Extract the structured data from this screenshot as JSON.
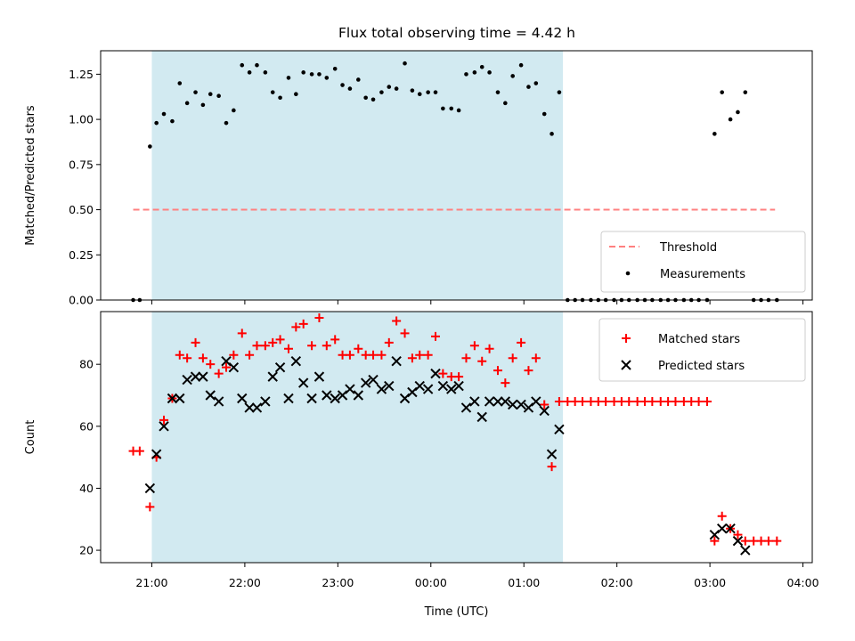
{
  "chart_data": [
    {
      "type": "scatter",
      "title": "Flux total observing time = 4.42 h",
      "xlabel": "",
      "ylabel": "Matched/Predicted stars",
      "x_unit": "hours since 21:00 UTC",
      "xlim": [
        -0.55,
        7.1
      ],
      "ylim": [
        0,
        1.38
      ],
      "yticks": [
        0.0,
        0.25,
        0.5,
        0.75,
        1.0,
        1.25
      ],
      "ytick_labels": [
        "0.00",
        "0.25",
        "0.50",
        "0.75",
        "1.00",
        "1.25"
      ],
      "shaded_span": {
        "x0": 0.0,
        "x1": 4.42,
        "color": "#add8e6"
      },
      "threshold": {
        "name": "Threshold",
        "y": 0.5,
        "x0": -0.2,
        "x1": 6.7,
        "color": "#ff8080"
      },
      "legend": {
        "position": "bottom-right",
        "entries": [
          "Threshold",
          "Measurements"
        ]
      },
      "series": [
        {
          "name": "Measurements",
          "color": "#000000",
          "marker": "dot",
          "points": [
            [
              -0.2,
              0.0
            ],
            [
              -0.13,
              0.0
            ],
            [
              -0.02,
              0.85
            ],
            [
              0.05,
              0.98
            ],
            [
              0.13,
              1.03
            ],
            [
              0.22,
              0.99
            ],
            [
              0.3,
              1.2
            ],
            [
              0.38,
              1.09
            ],
            [
              0.47,
              1.15
            ],
            [
              0.55,
              1.08
            ],
            [
              0.63,
              1.14
            ],
            [
              0.72,
              1.13
            ],
            [
              0.8,
              0.98
            ],
            [
              0.88,
              1.05
            ],
            [
              0.97,
              1.3
            ],
            [
              1.05,
              1.26
            ],
            [
              1.13,
              1.3
            ],
            [
              1.22,
              1.26
            ],
            [
              1.3,
              1.15
            ],
            [
              1.38,
              1.12
            ],
            [
              1.47,
              1.23
            ],
            [
              1.55,
              1.14
            ],
            [
              1.63,
              1.26
            ],
            [
              1.72,
              1.25
            ],
            [
              1.8,
              1.25
            ],
            [
              1.88,
              1.23
            ],
            [
              1.97,
              1.28
            ],
            [
              2.05,
              1.19
            ],
            [
              2.13,
              1.17
            ],
            [
              2.22,
              1.22
            ],
            [
              2.3,
              1.12
            ],
            [
              2.38,
              1.11
            ],
            [
              2.47,
              1.15
            ],
            [
              2.55,
              1.18
            ],
            [
              2.63,
              1.17
            ],
            [
              2.72,
              1.31
            ],
            [
              2.8,
              1.16
            ],
            [
              2.88,
              1.14
            ],
            [
              2.97,
              1.15
            ],
            [
              3.05,
              1.15
            ],
            [
              3.13,
              1.06
            ],
            [
              3.22,
              1.06
            ],
            [
              3.3,
              1.05
            ],
            [
              3.38,
              1.25
            ],
            [
              3.47,
              1.26
            ],
            [
              3.55,
              1.29
            ],
            [
              3.63,
              1.26
            ],
            [
              3.72,
              1.15
            ],
            [
              3.8,
              1.09
            ],
            [
              3.88,
              1.24
            ],
            [
              3.97,
              1.3
            ],
            [
              4.05,
              1.18
            ],
            [
              4.13,
              1.2
            ],
            [
              4.22,
              1.03
            ],
            [
              4.3,
              0.92
            ],
            [
              4.38,
              1.15
            ],
            [
              4.47,
              0.0
            ],
            [
              4.55,
              0.0
            ],
            [
              4.63,
              0.0
            ],
            [
              4.72,
              0.0
            ],
            [
              4.8,
              0.0
            ],
            [
              4.88,
              0.0
            ],
            [
              4.97,
              0.0
            ],
            [
              5.05,
              0.0
            ],
            [
              5.13,
              0.0
            ],
            [
              5.22,
              0.0
            ],
            [
              5.3,
              0.0
            ],
            [
              5.38,
              0.0
            ],
            [
              5.47,
              0.0
            ],
            [
              5.55,
              0.0
            ],
            [
              5.63,
              0.0
            ],
            [
              5.72,
              0.0
            ],
            [
              5.8,
              0.0
            ],
            [
              5.88,
              0.0
            ],
            [
              5.97,
              0.0
            ],
            [
              6.05,
              0.92
            ],
            [
              6.13,
              1.15
            ],
            [
              6.22,
              1.0
            ],
            [
              6.3,
              1.04
            ],
            [
              6.38,
              1.15
            ],
            [
              6.47,
              0.0
            ],
            [
              6.55,
              0.0
            ],
            [
              6.63,
              0.0
            ],
            [
              6.72,
              0.0
            ]
          ]
        }
      ]
    },
    {
      "type": "scatter",
      "title": "",
      "xlabel": "Time (UTC)",
      "ylabel": "Count",
      "x_unit": "hours since 21:00 UTC",
      "xlim": [
        -0.55,
        7.1
      ],
      "ylim": [
        16,
        97
      ],
      "xticks": [
        0,
        1,
        2,
        3,
        4,
        5,
        6,
        7
      ],
      "xtick_labels": [
        "21:00",
        "22:00",
        "23:00",
        "00:00",
        "01:00",
        "02:00",
        "03:00",
        "04:00"
      ],
      "yticks": [
        20,
        40,
        60,
        80
      ],
      "ytick_labels": [
        "20",
        "40",
        "60",
        "80"
      ],
      "shaded_span": {
        "x0": 0.0,
        "x1": 4.42,
        "color": "#add8e6"
      },
      "legend": {
        "position": "top-right",
        "entries": [
          "Matched stars",
          "Predicted stars"
        ]
      },
      "series": [
        {
          "name": "Matched stars",
          "color": "#ff0000",
          "marker": "plus",
          "points": [
            [
              -0.2,
              52
            ],
            [
              -0.13,
              52
            ],
            [
              -0.02,
              34
            ],
            [
              0.05,
              50
            ],
            [
              0.13,
              62
            ],
            [
              0.22,
              69
            ],
            [
              0.3,
              83
            ],
            [
              0.38,
              82
            ],
            [
              0.47,
              87
            ],
            [
              0.55,
              82
            ],
            [
              0.63,
              80
            ],
            [
              0.72,
              77
            ],
            [
              0.8,
              79
            ],
            [
              0.88,
              83
            ],
            [
              0.97,
              90
            ],
            [
              1.05,
              83
            ],
            [
              1.13,
              86
            ],
            [
              1.22,
              86
            ],
            [
              1.3,
              87
            ],
            [
              1.38,
              88
            ],
            [
              1.47,
              85
            ],
            [
              1.55,
              92
            ],
            [
              1.63,
              93
            ],
            [
              1.72,
              86
            ],
            [
              1.8,
              95
            ],
            [
              1.88,
              86
            ],
            [
              1.97,
              88
            ],
            [
              2.05,
              83
            ],
            [
              2.13,
              83
            ],
            [
              2.22,
              85
            ],
            [
              2.3,
              83
            ],
            [
              2.38,
              83
            ],
            [
              2.47,
              83
            ],
            [
              2.55,
              87
            ],
            [
              2.63,
              94
            ],
            [
              2.72,
              90
            ],
            [
              2.8,
              82
            ],
            [
              2.88,
              83
            ],
            [
              2.97,
              83
            ],
            [
              3.05,
              89
            ],
            [
              3.13,
              77
            ],
            [
              3.22,
              76
            ],
            [
              3.3,
              76
            ],
            [
              3.38,
              82
            ],
            [
              3.47,
              86
            ],
            [
              3.55,
              81
            ],
            [
              3.63,
              85
            ],
            [
              3.72,
              78
            ],
            [
              3.8,
              74
            ],
            [
              3.88,
              82
            ],
            [
              3.97,
              87
            ],
            [
              4.05,
              78
            ],
            [
              4.13,
              82
            ],
            [
              4.22,
              67
            ],
            [
              4.3,
              47
            ],
            [
              4.38,
              68
            ],
            [
              4.47,
              68
            ],
            [
              4.55,
              68
            ],
            [
              4.63,
              68
            ],
            [
              4.72,
              68
            ],
            [
              4.8,
              68
            ],
            [
              4.88,
              68
            ],
            [
              4.97,
              68
            ],
            [
              5.05,
              68
            ],
            [
              5.13,
              68
            ],
            [
              5.22,
              68
            ],
            [
              5.3,
              68
            ],
            [
              5.38,
              68
            ],
            [
              5.47,
              68
            ],
            [
              5.55,
              68
            ],
            [
              5.63,
              68
            ],
            [
              5.72,
              68
            ],
            [
              5.8,
              68
            ],
            [
              5.88,
              68
            ],
            [
              5.97,
              68
            ],
            [
              6.05,
              23
            ],
            [
              6.13,
              31
            ],
            [
              6.22,
              27
            ],
            [
              6.3,
              25
            ],
            [
              6.38,
              23
            ],
            [
              6.47,
              23
            ],
            [
              6.55,
              23
            ],
            [
              6.63,
              23
            ],
            [
              6.72,
              23
            ]
          ]
        },
        {
          "name": "Predicted stars",
          "color": "#000000",
          "marker": "x",
          "points": [
            [
              -0.02,
              40
            ],
            [
              0.05,
              51
            ],
            [
              0.13,
              60
            ],
            [
              0.22,
              69
            ],
            [
              0.3,
              69
            ],
            [
              0.38,
              75
            ],
            [
              0.47,
              76
            ],
            [
              0.55,
              76
            ],
            [
              0.63,
              70
            ],
            [
              0.72,
              68
            ],
            [
              0.8,
              81
            ],
            [
              0.88,
              79
            ],
            [
              0.97,
              69
            ],
            [
              1.05,
              66
            ],
            [
              1.13,
              66
            ],
            [
              1.22,
              68
            ],
            [
              1.3,
              76
            ],
            [
              1.38,
              79
            ],
            [
              1.47,
              69
            ],
            [
              1.55,
              81
            ],
            [
              1.63,
              74
            ],
            [
              1.72,
              69
            ],
            [
              1.8,
              76
            ],
            [
              1.88,
              70
            ],
            [
              1.97,
              69
            ],
            [
              2.05,
              70
            ],
            [
              2.13,
              72
            ],
            [
              2.22,
              70
            ],
            [
              2.3,
              74
            ],
            [
              2.38,
              75
            ],
            [
              2.47,
              72
            ],
            [
              2.55,
              73
            ],
            [
              2.63,
              81
            ],
            [
              2.72,
              69
            ],
            [
              2.8,
              71
            ],
            [
              2.88,
              73
            ],
            [
              2.97,
              72
            ],
            [
              3.05,
              77
            ],
            [
              3.13,
              73
            ],
            [
              3.22,
              72
            ],
            [
              3.3,
              73
            ],
            [
              3.38,
              66
            ],
            [
              3.47,
              68
            ],
            [
              3.55,
              63
            ],
            [
              3.63,
              68
            ],
            [
              3.72,
              68
            ],
            [
              3.8,
              68
            ],
            [
              3.88,
              67
            ],
            [
              3.97,
              67
            ],
            [
              4.05,
              66
            ],
            [
              4.13,
              68
            ],
            [
              4.22,
              65
            ],
            [
              4.3,
              51
            ],
            [
              4.38,
              59
            ],
            [
              6.05,
              25
            ],
            [
              6.13,
              27
            ],
            [
              6.22,
              27
            ],
            [
              6.3,
              23
            ],
            [
              6.38,
              20
            ]
          ]
        }
      ]
    }
  ]
}
